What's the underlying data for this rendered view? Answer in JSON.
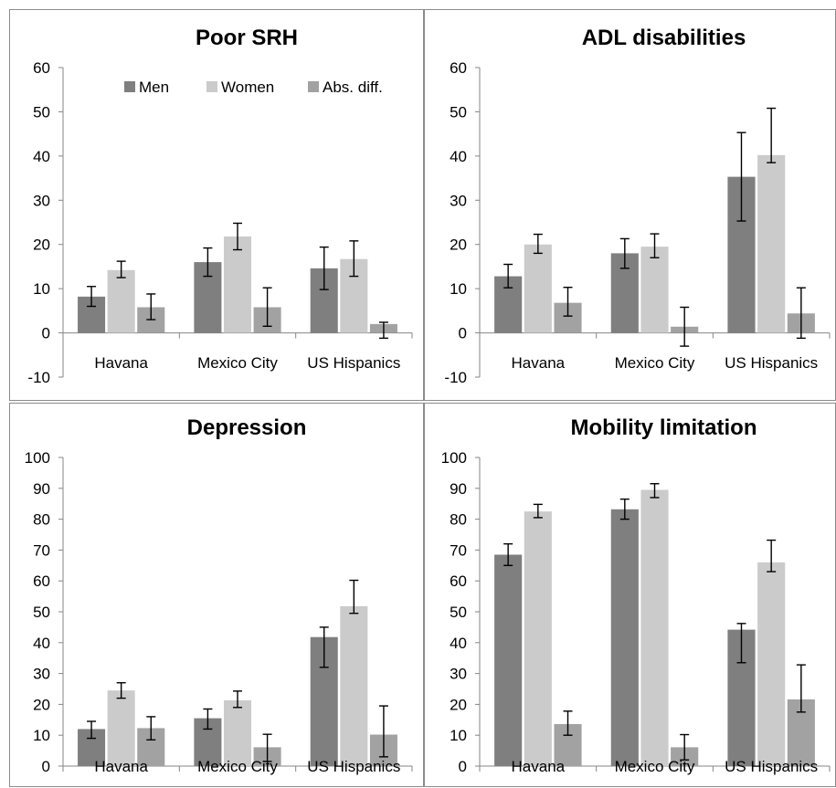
{
  "colors": {
    "men": "#7f7f7f",
    "women": "#cbcbcb",
    "abs_diff": "#a2a2a2"
  },
  "chart_data": [
    {
      "type": "bar",
      "title": "Poor SRH",
      "categories": [
        "Havana",
        "Mexico City",
        "US Hispanics"
      ],
      "ylim": [
        -10,
        60
      ],
      "yticks": [
        -10,
        0,
        10,
        20,
        30,
        40,
        50,
        60
      ],
      "legend": "top-right",
      "series": [
        {
          "name": "Men",
          "values": [
            8.2,
            16.0,
            14.6
          ],
          "err_low": [
            6.0,
            12.8,
            9.8
          ],
          "err_high": [
            10.5,
            19.2,
            19.4
          ]
        },
        {
          "name": "Women",
          "values": [
            14.2,
            21.8,
            16.7
          ],
          "err_low": [
            12.5,
            18.8,
            12.8
          ],
          "err_high": [
            16.2,
            24.8,
            20.8
          ]
        },
        {
          "name": "Abs. diff.",
          "values": [
            5.8,
            5.8,
            2.0
          ],
          "err_low": [
            3.0,
            1.5,
            -1.2
          ],
          "err_high": [
            8.8,
            10.2,
            2.4
          ]
        }
      ]
    },
    {
      "type": "bar",
      "title": "ADL disabilities",
      "categories": [
        "Havana",
        "Mexico City",
        "US Hispanics"
      ],
      "ylim": [
        -10,
        60
      ],
      "yticks": [
        -10,
        0,
        10,
        20,
        30,
        40,
        50,
        60
      ],
      "series": [
        {
          "name": "Men",
          "values": [
            12.8,
            18.0,
            35.3
          ],
          "err_low": [
            10.2,
            14.6,
            25.3
          ],
          "err_high": [
            15.5,
            21.3,
            45.3
          ]
        },
        {
          "name": "Women",
          "values": [
            20.0,
            19.5,
            40.2
          ],
          "err_low": [
            18.0,
            17.0,
            38.5
          ],
          "err_high": [
            22.3,
            22.4,
            50.8
          ]
        },
        {
          "name": "Abs. diff.",
          "values": [
            6.8,
            1.4,
            4.4
          ],
          "err_low": [
            3.8,
            -3.0,
            -1.2
          ],
          "err_high": [
            10.3,
            5.8,
            10.2
          ]
        }
      ]
    },
    {
      "type": "bar",
      "title": "Depression",
      "categories": [
        "Havana",
        "Mexico City",
        "US Hispanics"
      ],
      "ylim": [
        0,
        100
      ],
      "yticks": [
        0,
        10,
        20,
        30,
        40,
        50,
        60,
        70,
        80,
        90,
        100
      ],
      "series": [
        {
          "name": "Men",
          "values": [
            12.0,
            15.5,
            41.8
          ],
          "err_low": [
            9.0,
            12.0,
            32.0
          ],
          "err_high": [
            14.5,
            18.5,
            45.0
          ]
        },
        {
          "name": "Women",
          "values": [
            24.5,
            21.3,
            51.8
          ],
          "err_low": [
            22.0,
            19.0,
            49.5
          ],
          "err_high": [
            27.0,
            24.3,
            60.2
          ]
        },
        {
          "name": "Abs. diff.",
          "values": [
            12.3,
            6.1,
            10.2
          ],
          "err_low": [
            8.5,
            1.5,
            3.0
          ],
          "err_high": [
            16.0,
            10.3,
            19.5
          ]
        }
      ]
    },
    {
      "type": "bar",
      "title": "Mobility limitation",
      "categories": [
        "Havana",
        "Mexico City",
        "US Hispanics"
      ],
      "ylim": [
        0,
        100
      ],
      "yticks": [
        0,
        10,
        20,
        30,
        40,
        50,
        60,
        70,
        80,
        90,
        100
      ],
      "series": [
        {
          "name": "Men",
          "values": [
            68.5,
            83.2,
            44.2
          ],
          "err_low": [
            65.0,
            80.0,
            33.5
          ],
          "err_high": [
            72.0,
            86.5,
            46.2
          ]
        },
        {
          "name": "Women",
          "values": [
            82.5,
            89.5,
            66.0
          ],
          "err_low": [
            80.5,
            87.0,
            63.0
          ],
          "err_high": [
            84.8,
            91.5,
            73.2
          ]
        },
        {
          "name": "Abs. diff.",
          "values": [
            13.6,
            6.1,
            21.6
          ],
          "err_low": [
            10.0,
            2.0,
            17.5
          ],
          "err_high": [
            17.8,
            10.2,
            32.8
          ]
        }
      ]
    }
  ]
}
